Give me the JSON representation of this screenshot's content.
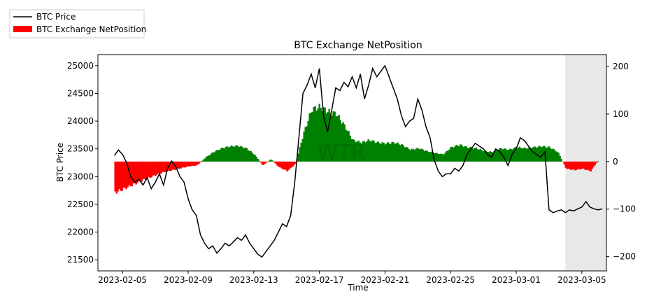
{
  "chart_data": {
    "type": "bar+line",
    "title": "BTC Exchange NetPosition",
    "xlabel": "Time",
    "ylabel": "BTC Price",
    "y2label": "",
    "watermark": "WTR",
    "legend_position": "top-left, outside plot",
    "legend": [
      {
        "name": "BTC Price",
        "kind": "line",
        "color": "#000000"
      },
      {
        "name": "BTC Exchange NetPosition",
        "kind": "bar",
        "color": "#ff0000"
      }
    ],
    "xrange": [
      "2023-02-03T12:00",
      "2023-03-06T12:00"
    ],
    "xticks": [
      "2023-02-05",
      "2023-02-09",
      "2023-02-13",
      "2023-02-17",
      "2023-02-21",
      "2023-02-25",
      "2023-03-01",
      "2023-03-05"
    ],
    "ylim": [
      21300,
      25200
    ],
    "yticks": [
      21500,
      22000,
      22500,
      23000,
      23500,
      24000,
      24500,
      25000
    ],
    "y2lim": [
      -230,
      225
    ],
    "y2ticks": [
      -200,
      -100,
      0,
      100,
      200
    ],
    "positive_color": "#008000",
    "negative_color": "#ff0000",
    "shaded_region": {
      "from": "2023-03-04T00:00",
      "to": "2023-03-06T17:00",
      "color": "#e8e8e8"
    },
    "netposition_series": {
      "name": "BTC Exchange NetPosition",
      "points": [
        [
          "2023-02-04T12:00",
          -65
        ],
        [
          "2023-02-05T00:00",
          -58
        ],
        [
          "2023-02-05T12:00",
          -50
        ],
        [
          "2023-02-06T00:00",
          -42
        ],
        [
          "2023-02-06T12:00",
          -35
        ],
        [
          "2023-02-07T00:00",
          -28
        ],
        [
          "2023-02-07T12:00",
          -22
        ],
        [
          "2023-02-08T00:00",
          -18
        ],
        [
          "2023-02-08T12:00",
          -14
        ],
        [
          "2023-02-09T00:00",
          -10
        ],
        [
          "2023-02-09T12:00",
          -8
        ],
        [
          "2023-02-10T00:00",
          8
        ],
        [
          "2023-02-10T12:00",
          20
        ],
        [
          "2023-02-11T00:00",
          28
        ],
        [
          "2023-02-11T12:00",
          32
        ],
        [
          "2023-02-12T00:00",
          33
        ],
        [
          "2023-02-12T12:00",
          28
        ],
        [
          "2023-02-13T00:00",
          15
        ],
        [
          "2023-02-13T12:00",
          -8
        ],
        [
          "2023-02-14T00:00",
          5
        ],
        [
          "2023-02-14T12:00",
          -12
        ],
        [
          "2023-02-15T00:00",
          -20
        ],
        [
          "2023-02-15T12:00",
          -5
        ],
        [
          "2023-02-16T00:00",
          60
        ],
        [
          "2023-02-16T12:00",
          110
        ],
        [
          "2023-02-17T00:00",
          115
        ],
        [
          "2023-02-17T12:00",
          105
        ],
        [
          "2023-02-18T00:00",
          100
        ],
        [
          "2023-02-18T12:00",
          75
        ],
        [
          "2023-02-19T00:00",
          45
        ],
        [
          "2023-02-19T12:00",
          40
        ],
        [
          "2023-02-20T00:00",
          45
        ],
        [
          "2023-02-20T12:00",
          40
        ],
        [
          "2023-02-21T00:00",
          38
        ],
        [
          "2023-02-21T12:00",
          40
        ],
        [
          "2023-02-22T00:00",
          35
        ],
        [
          "2023-02-22T12:00",
          25
        ],
        [
          "2023-02-23T00:00",
          28
        ],
        [
          "2023-02-23T12:00",
          22
        ],
        [
          "2023-02-24T00:00",
          18
        ],
        [
          "2023-02-24T12:00",
          15
        ],
        [
          "2023-02-25T00:00",
          30
        ],
        [
          "2023-02-25T12:00",
          35
        ],
        [
          "2023-02-26T00:00",
          30
        ],
        [
          "2023-02-26T12:00",
          28
        ],
        [
          "2023-02-27T00:00",
          22
        ],
        [
          "2023-02-27T12:00",
          20
        ],
        [
          "2023-02-28T00:00",
          28
        ],
        [
          "2023-02-28T12:00",
          25
        ],
        [
          "2023-03-01T00:00",
          30
        ],
        [
          "2023-03-01T12:00",
          28
        ],
        [
          "2023-03-02T00:00",
          30
        ],
        [
          "2023-03-02T12:00",
          32
        ],
        [
          "2023-03-03T00:00",
          30
        ],
        [
          "2023-03-03T12:00",
          20
        ],
        [
          "2023-03-04T00:00",
          -15
        ],
        [
          "2023-03-04T12:00",
          -18
        ],
        [
          "2023-03-05T00:00",
          -15
        ],
        [
          "2023-03-05T12:00",
          -20
        ],
        [
          "2023-03-06T00:00",
          5
        ]
      ]
    },
    "price_series": {
      "name": "BTC Price",
      "points": [
        [
          "2023-02-04T12:00",
          23380
        ],
        [
          "2023-02-04T18:00",
          23480
        ],
        [
          "2023-02-05T00:00",
          23400
        ],
        [
          "2023-02-05T06:00",
          23250
        ],
        [
          "2023-02-05T12:00",
          23000
        ],
        [
          "2023-02-05T18:00",
          22900
        ],
        [
          "2023-02-06T00:00",
          22950
        ],
        [
          "2023-02-06T06:00",
          22850
        ],
        [
          "2023-02-06T12:00",
          22980
        ],
        [
          "2023-02-06T18:00",
          22780
        ],
        [
          "2023-02-07T00:00",
          22900
        ],
        [
          "2023-02-07T06:00",
          23050
        ],
        [
          "2023-02-07T12:00",
          22850
        ],
        [
          "2023-02-07T18:00",
          23150
        ],
        [
          "2023-02-08T00:00",
          23280
        ],
        [
          "2023-02-08T06:00",
          23180
        ],
        [
          "2023-02-08T12:00",
          23000
        ],
        [
          "2023-02-08T18:00",
          22900
        ],
        [
          "2023-02-09T00:00",
          22600
        ],
        [
          "2023-02-09T06:00",
          22400
        ],
        [
          "2023-02-09T12:00",
          22300
        ],
        [
          "2023-02-09T18:00",
          21950
        ],
        [
          "2023-02-10T00:00",
          21800
        ],
        [
          "2023-02-10T06:00",
          21700
        ],
        [
          "2023-02-10T12:00",
          21750
        ],
        [
          "2023-02-10T18:00",
          21620
        ],
        [
          "2023-02-11T00:00",
          21700
        ],
        [
          "2023-02-11T06:00",
          21800
        ],
        [
          "2023-02-11T12:00",
          21750
        ],
        [
          "2023-02-11T18:00",
          21820
        ],
        [
          "2023-02-12T00:00",
          21900
        ],
        [
          "2023-02-12T06:00",
          21850
        ],
        [
          "2023-02-12T12:00",
          21950
        ],
        [
          "2023-02-12T18:00",
          21800
        ],
        [
          "2023-02-13T00:00",
          21700
        ],
        [
          "2023-02-13T06:00",
          21600
        ],
        [
          "2023-02-13T12:00",
          21550
        ],
        [
          "2023-02-13T18:00",
          21650
        ],
        [
          "2023-02-14T00:00",
          21750
        ],
        [
          "2023-02-14T06:00",
          21850
        ],
        [
          "2023-02-14T12:00",
          22000
        ],
        [
          "2023-02-14T18:00",
          22150
        ],
        [
          "2023-02-15T00:00",
          22100
        ],
        [
          "2023-02-15T06:00",
          22300
        ],
        [
          "2023-02-15T12:00",
          22900
        ],
        [
          "2023-02-15T18:00",
          23700
        ],
        [
          "2023-02-16T00:00",
          24500
        ],
        [
          "2023-02-16T06:00",
          24650
        ],
        [
          "2023-02-16T12:00",
          24850
        ],
        [
          "2023-02-16T18:00",
          24600
        ],
        [
          "2023-02-17T00:00",
          24950
        ],
        [
          "2023-02-17T06:00",
          24100
        ],
        [
          "2023-02-17T12:00",
          23800
        ],
        [
          "2023-02-17T18:00",
          24200
        ],
        [
          "2023-02-18T00:00",
          24600
        ],
        [
          "2023-02-18T06:00",
          24550
        ],
        [
          "2023-02-18T12:00",
          24700
        ],
        [
          "2023-02-18T18:00",
          24620
        ],
        [
          "2023-02-19T00:00",
          24800
        ],
        [
          "2023-02-19T06:00",
          24600
        ],
        [
          "2023-02-19T12:00",
          24850
        ],
        [
          "2023-02-19T18:00",
          24400
        ],
        [
          "2023-02-20T00:00",
          24650
        ],
        [
          "2023-02-20T06:00",
          24950
        ],
        [
          "2023-02-20T12:00",
          24800
        ],
        [
          "2023-02-20T18:00",
          24900
        ],
        [
          "2023-02-21T00:00",
          25000
        ],
        [
          "2023-02-21T06:00",
          24800
        ],
        [
          "2023-02-21T12:00",
          24600
        ],
        [
          "2023-02-21T18:00",
          24400
        ],
        [
          "2023-02-22T00:00",
          24100
        ],
        [
          "2023-02-22T06:00",
          23900
        ],
        [
          "2023-02-22T12:00",
          24000
        ],
        [
          "2023-02-22T18:00",
          24050
        ],
        [
          "2023-02-23T00:00",
          24400
        ],
        [
          "2023-02-23T06:00",
          24200
        ],
        [
          "2023-02-23T12:00",
          23900
        ],
        [
          "2023-02-23T18:00",
          23700
        ],
        [
          "2023-02-24T00:00",
          23300
        ],
        [
          "2023-02-24T06:00",
          23100
        ],
        [
          "2023-02-24T12:00",
          23000
        ],
        [
          "2023-02-24T18:00",
          23050
        ],
        [
          "2023-02-25T00:00",
          23050
        ],
        [
          "2023-02-25T06:00",
          23150
        ],
        [
          "2023-02-25T12:00",
          23100
        ],
        [
          "2023-02-25T18:00",
          23200
        ],
        [
          "2023-02-26T00:00",
          23400
        ],
        [
          "2023-02-26T06:00",
          23500
        ],
        [
          "2023-02-26T12:00",
          23600
        ],
        [
          "2023-02-26T18:00",
          23550
        ],
        [
          "2023-02-27T00:00",
          23500
        ],
        [
          "2023-02-27T06:00",
          23400
        ],
        [
          "2023-02-27T12:00",
          23350
        ],
        [
          "2023-02-27T18:00",
          23500
        ],
        [
          "2023-02-28T00:00",
          23450
        ],
        [
          "2023-02-28T06:00",
          23350
        ],
        [
          "2023-02-28T12:00",
          23200
        ],
        [
          "2023-02-28T18:00",
          23400
        ],
        [
          "2023-03-01T00:00",
          23500
        ],
        [
          "2023-03-01T06:00",
          23700
        ],
        [
          "2023-03-01T12:00",
          23650
        ],
        [
          "2023-03-01T18:00",
          23550
        ],
        [
          "2023-03-02T00:00",
          23450
        ],
        [
          "2023-03-02T06:00",
          23400
        ],
        [
          "2023-03-02T12:00",
          23350
        ],
        [
          "2023-03-02T18:00",
          23450
        ],
        [
          "2023-03-03T00:00",
          22400
        ],
        [
          "2023-03-03T06:00",
          22350
        ],
        [
          "2023-03-03T12:00",
          22380
        ],
        [
          "2023-03-03T18:00",
          22400
        ],
        [
          "2023-03-04T00:00",
          22350
        ],
        [
          "2023-03-04T06:00",
          22400
        ],
        [
          "2023-03-04T12:00",
          22380
        ],
        [
          "2023-03-04T18:00",
          22420
        ],
        [
          "2023-03-05T00:00",
          22450
        ],
        [
          "2023-03-05T06:00",
          22550
        ],
        [
          "2023-03-05T12:00",
          22450
        ],
        [
          "2023-03-05T18:00",
          22420
        ],
        [
          "2023-03-06T00:00",
          22400
        ],
        [
          "2023-03-06T06:00",
          22420
        ]
      ]
    }
  }
}
